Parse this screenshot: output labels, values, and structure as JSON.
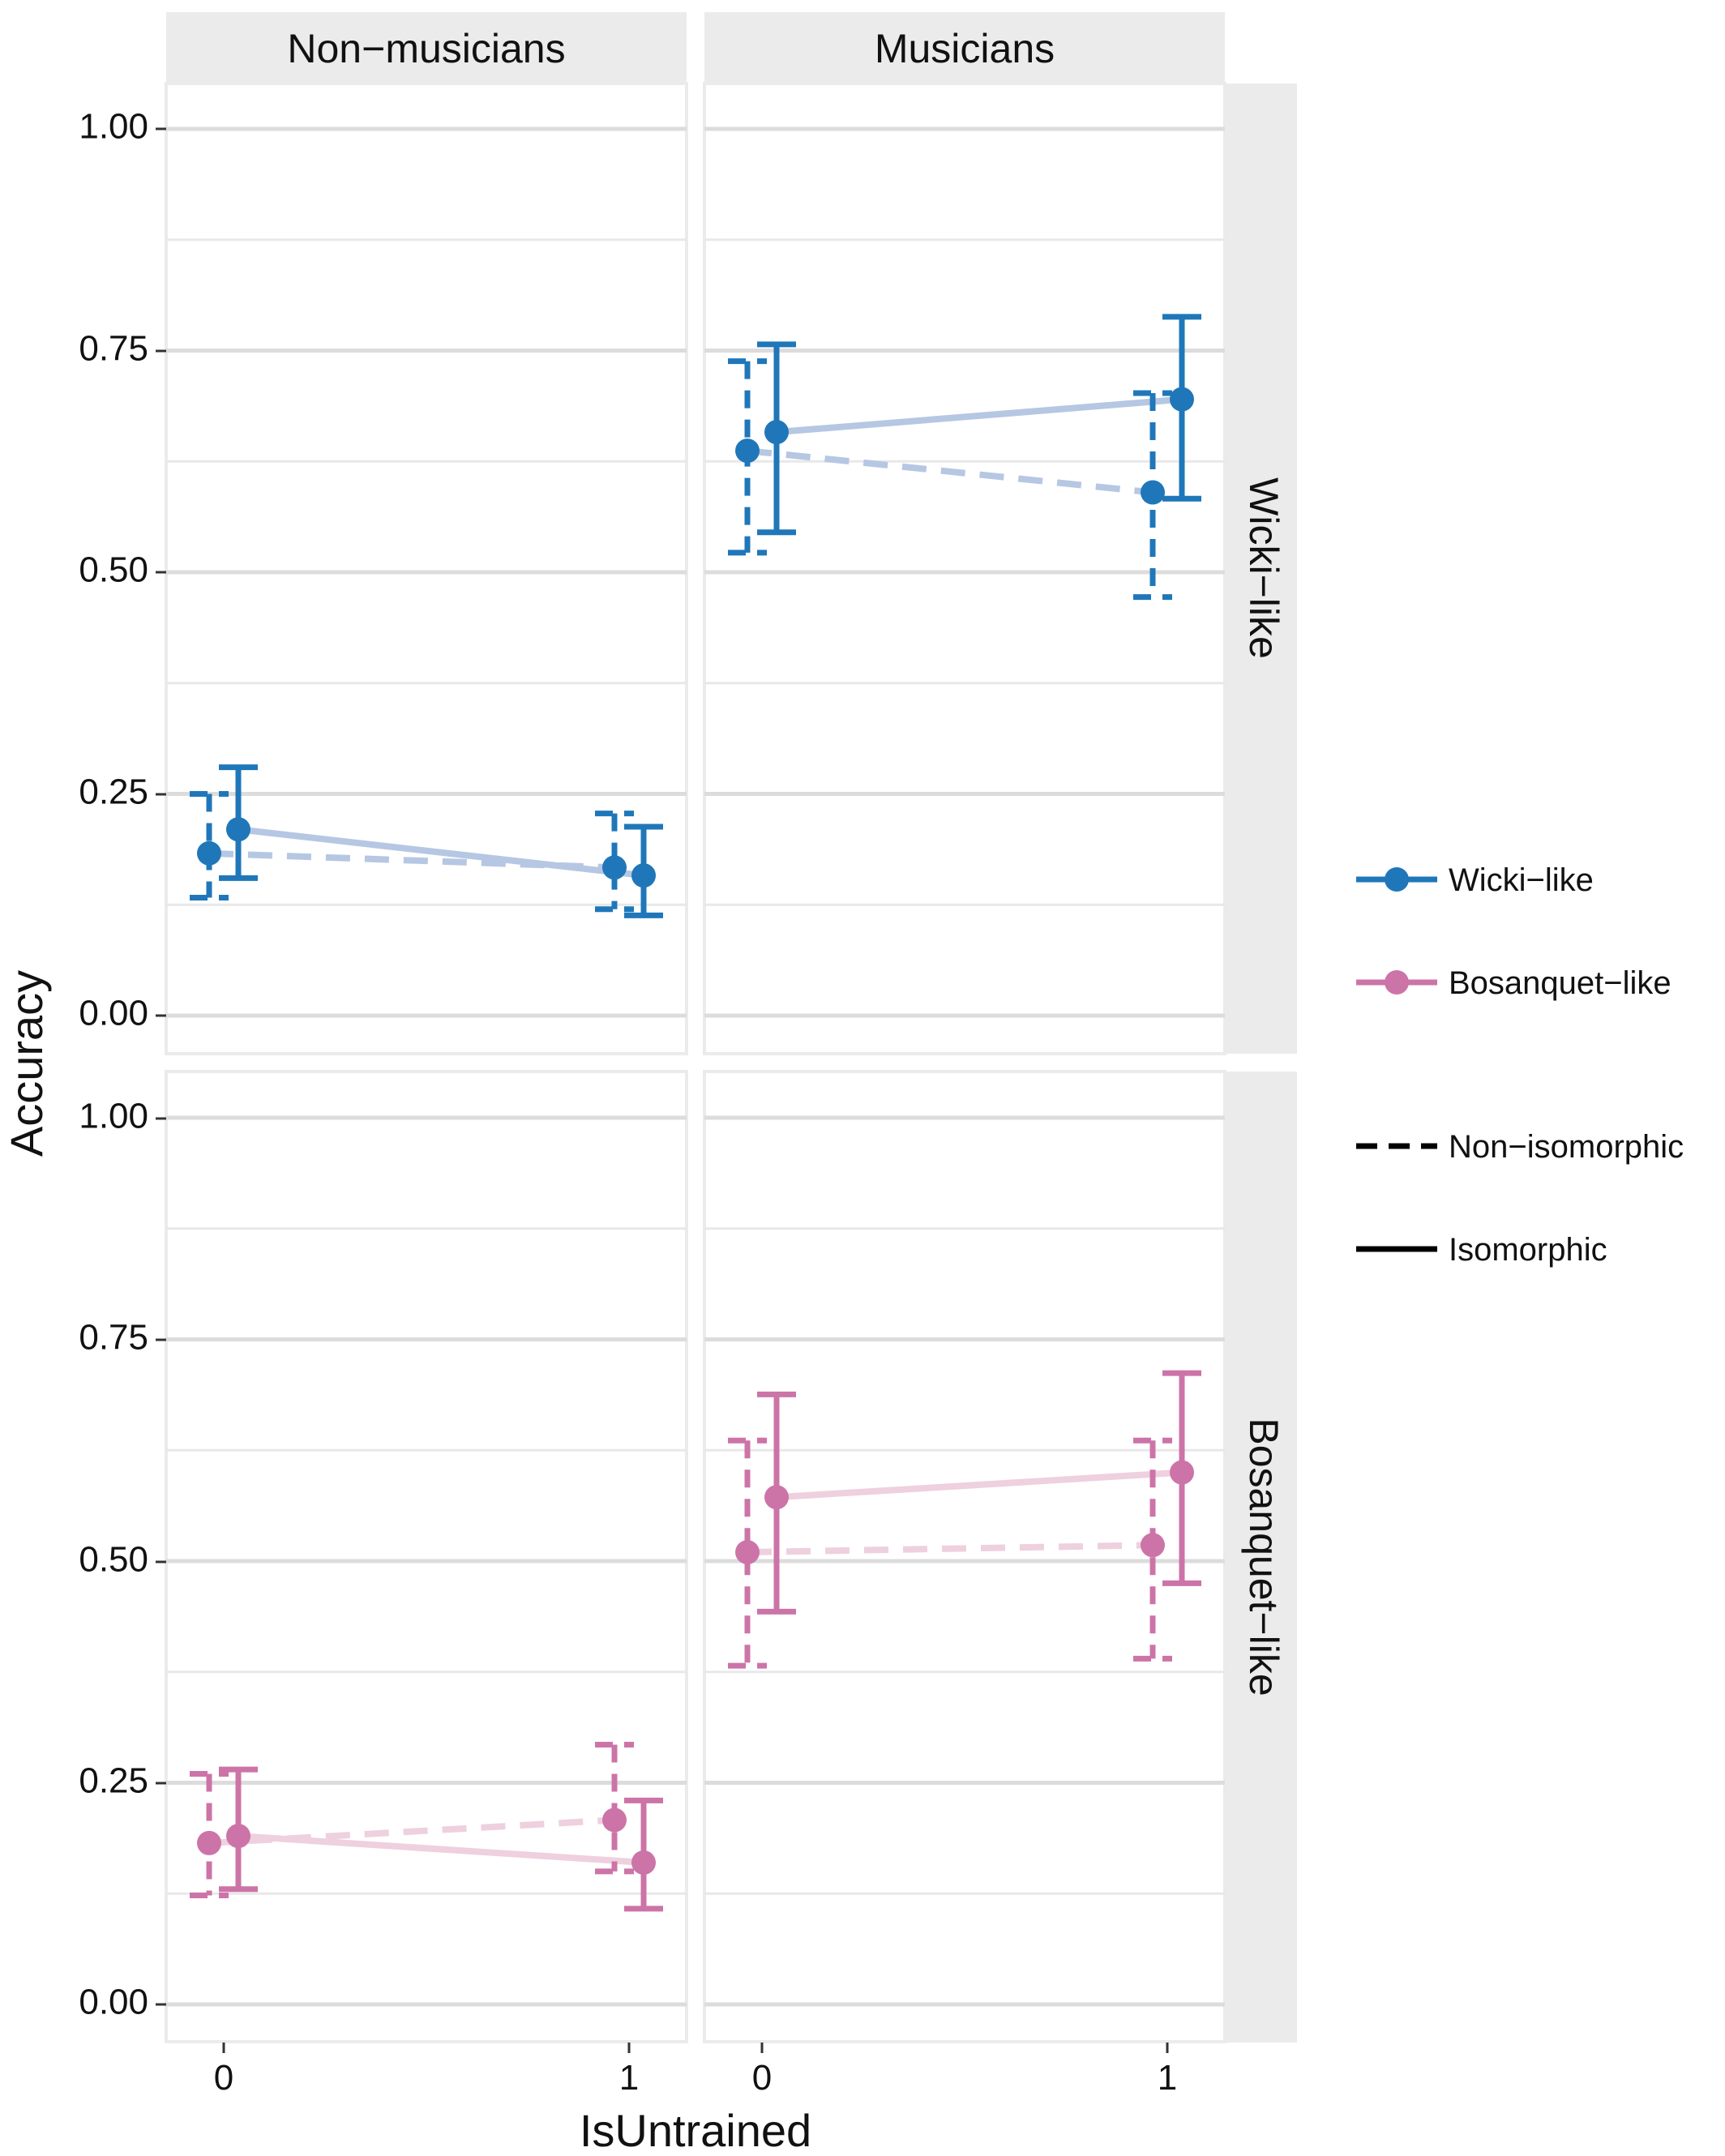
{
  "colors": {
    "wicki": "#1f77b9",
    "wicki_line": "#b6c7e3",
    "bosanquet": "#cc74a7",
    "bosanquet_line": "#eed0df"
  },
  "chart_data": {
    "type": "line",
    "facet_columns": [
      "Non−musicians",
      "Musicians"
    ],
    "facet_rows": [
      "Wicki−like",
      "Bosanquet−like"
    ],
    "xlabel": "IsUntrained",
    "ylabel": "Accuracy",
    "x_ticks": [
      "0",
      "1"
    ],
    "y_ticks": [
      "0.00",
      "0.25",
      "0.50",
      "0.75",
      "1.00"
    ],
    "ylim": [
      0,
      1
    ],
    "legend": {
      "position": "right",
      "color": [
        {
          "key": "wicki",
          "label": "Wicki−like"
        },
        {
          "key": "bosanquet",
          "label": "Bosanquet−like"
        }
      ],
      "linetype": [
        {
          "key": "dashed",
          "label": "Non−isomorphic"
        },
        {
          "key": "solid",
          "label": "Isomorphic"
        }
      ]
    },
    "series": [
      {
        "group": "Non−musicians",
        "layout": "Wicki−like",
        "mapping": "Non−isomorphic",
        "x": [
          0,
          1
        ],
        "y": [
          0.183,
          0.167
        ],
        "ymin": [
          0.133,
          0.12
        ],
        "ymax": [
          0.25,
          0.228
        ]
      },
      {
        "group": "Non−musicians",
        "layout": "Wicki−like",
        "mapping": "Isomorphic",
        "x": [
          0,
          1
        ],
        "y": [
          0.21,
          0.158
        ],
        "ymin": [
          0.155,
          0.113
        ],
        "ymax": [
          0.28,
          0.213
        ]
      },
      {
        "group": "Musicians",
        "layout": "Wicki−like",
        "mapping": "Non−isomorphic",
        "x": [
          0,
          1
        ],
        "y": [
          0.637,
          0.59
        ],
        "ymin": [
          0.522,
          0.472
        ],
        "ymax": [
          0.738,
          0.702
        ]
      },
      {
        "group": "Musicians",
        "layout": "Wicki−like",
        "mapping": "Isomorphic",
        "x": [
          0,
          1
        ],
        "y": [
          0.658,
          0.695
        ],
        "ymin": [
          0.545,
          0.583
        ],
        "ymax": [
          0.757,
          0.788
        ]
      },
      {
        "group": "Non−musicians",
        "layout": "Bosanquet−like",
        "mapping": "Non−isomorphic",
        "x": [
          0,
          1
        ],
        "y": [
          0.182,
          0.208
        ],
        "ymin": [
          0.123,
          0.15
        ],
        "ymax": [
          0.26,
          0.293
        ]
      },
      {
        "group": "Non−musicians",
        "layout": "Bosanquet−like",
        "mapping": "Isomorphic",
        "x": [
          0,
          1
        ],
        "y": [
          0.19,
          0.16
        ],
        "ymin": [
          0.13,
          0.108
        ],
        "ymax": [
          0.265,
          0.23
        ]
      },
      {
        "group": "Musicians",
        "layout": "Bosanquet−like",
        "mapping": "Non−isomorphic",
        "x": [
          0,
          1
        ],
        "y": [
          0.51,
          0.518
        ],
        "ymin": [
          0.382,
          0.39
        ],
        "ymax": [
          0.636,
          0.636
        ]
      },
      {
        "group": "Musicians",
        "layout": "Bosanquet−like",
        "mapping": "Isomorphic",
        "x": [
          0,
          1
        ],
        "y": [
          0.572,
          0.6
        ],
        "ymin": [
          0.443,
          0.475
        ],
        "ymax": [
          0.688,
          0.712
        ]
      }
    ]
  }
}
